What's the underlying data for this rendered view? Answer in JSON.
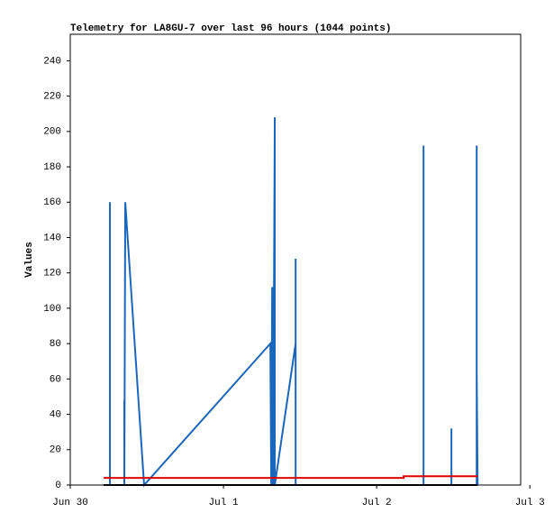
{
  "chart_data": {
    "type": "line",
    "title": "Telemetry for LA8GU-7 over last 96 hours (1044 points)",
    "y_label": "Values",
    "xlim": [
      0,
      2.94
    ],
    "xticks": [
      {
        "value": 0,
        "label": "Jun 30"
      },
      {
        "value": 1,
        "label": "Jul 1"
      },
      {
        "value": 2,
        "label": "Jul 2"
      },
      {
        "value": 3,
        "label": "Jul 3"
      }
    ],
    "ylim": [
      0,
      255
    ],
    "yticks": [
      0,
      20,
      40,
      60,
      80,
      100,
      120,
      140,
      160,
      180,
      200,
      220,
      240
    ],
    "series": [
      {
        "color": "#1a66bb",
        "x": [
          0.218,
          0.259,
          0.259,
          0.259,
          0.353,
          0.353,
          0.353,
          0.359,
          0.482,
          1.306,
          1.312,
          1.318,
          1.318,
          1.324,
          1.324,
          1.335,
          1.335,
          1.471,
          1.471,
          1.471,
          2.306,
          2.306,
          2.306,
          2.488,
          2.488,
          2.488,
          2.653,
          2.653,
          2.653,
          2.653,
          2.659
        ],
        "values": [
          0,
          0,
          160,
          0,
          0,
          48,
          0,
          160,
          0,
          80,
          0,
          112,
          0,
          104,
          0,
          208,
          0,
          80,
          128,
          0,
          0,
          192,
          0,
          0,
          32,
          0,
          0,
          96,
          192,
          64,
          0
        ]
      },
      {
        "color": "#e00000",
        "x": [
          0.218,
          2.176,
          2.176,
          2.659
        ],
        "values": [
          4,
          4,
          5,
          5
        ]
      },
      {
        "color": "#000000",
        "x": [
          0.218,
          2.659
        ],
        "values": [
          0,
          0
        ]
      }
    ]
  }
}
